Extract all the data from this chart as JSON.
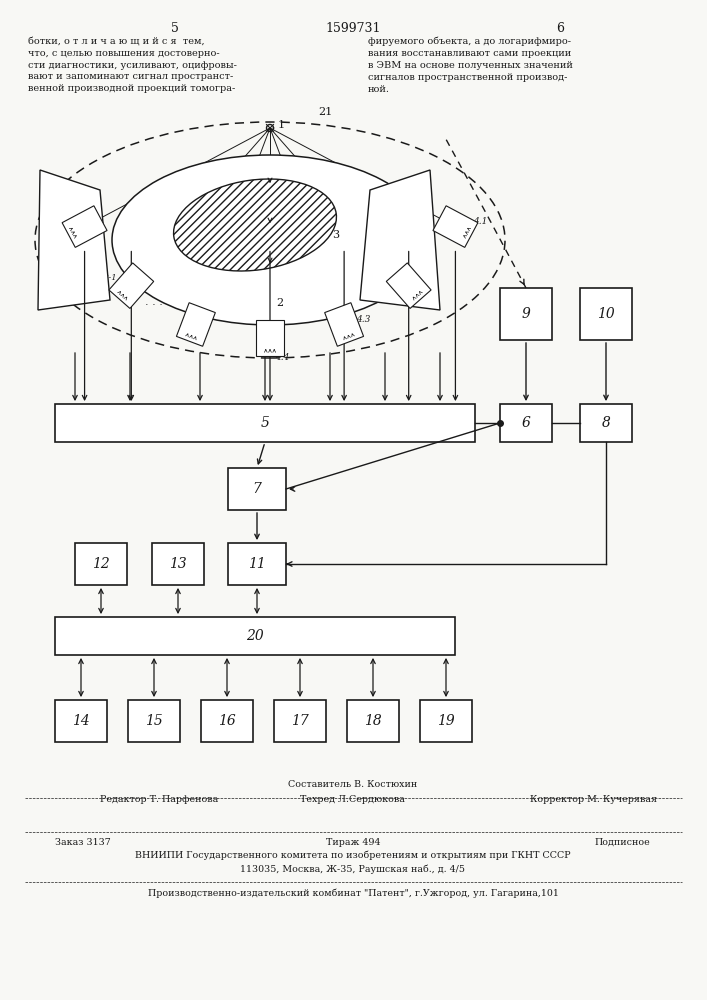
{
  "title": "1599731",
  "page_numbers": [
    "5",
    "6"
  ],
  "text_left": "ботки, о т л и ч а ю щ и й с я  тем,\nчто, с целью повышения достоверно-\nсти диагностики, усиливают, оцифровы-\nвают и запоминают сигнал пространст-\nвенной производной проекций томогра-",
  "text_right": "фируемого объекта, а до логарифмиро-\nвания восстанавливают сами проекции\nв ЭВМ на основе полученных значений\nсигналов пространственной производ-\nной.",
  "bg_color": "#f8f8f5",
  "line_color": "#1a1a1a",
  "footer_lines": [
    "Составитель В. Костюхин",
    "Редактор Т. Парфенова    Техред Л.Сердюкова         Корректор М. Кучерявая",
    "Заказ 3137              Тираж 494                   Подписное",
    "ВНИИПИ Государственного комитета по изобретениям и открытиям при ГКНТ СССР",
    "             113035, Москва, Ж-35, Раушская наб., д. 4/5",
    "Производственно-издательский комбинат \"Патент\", г.Ужгород, ул. Гагарина,101"
  ]
}
